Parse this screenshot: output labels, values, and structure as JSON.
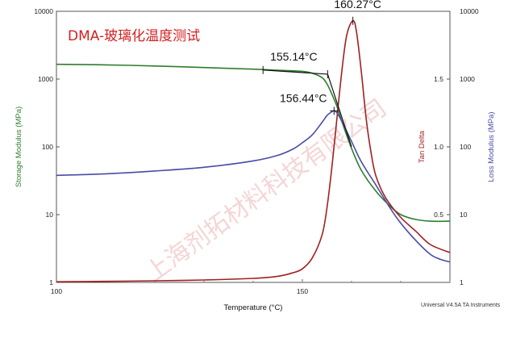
{
  "chart_data": {
    "type": "line",
    "title": "DMA-玻璃化温度测试",
    "xlabel": "Temperature (°C)",
    "xlim": [
      100,
      180
    ],
    "x_ticks": [
      {
        "value": 100,
        "label": "100"
      },
      {
        "value": 150,
        "label": "150"
      }
    ],
    "y_left": {
      "label": "Storage Modulus (MPa)",
      "scale": "log",
      "lim": [
        1,
        10000
      ],
      "tick_labels": [
        "1",
        "10",
        "100",
        "1000",
        "10000"
      ],
      "color": "#2e7d2e"
    },
    "y_right_inner": {
      "label": "Tan Delta",
      "lim": [
        0.0,
        2.0
      ],
      "tick_labels": [
        "0.5",
        "1.0",
        "1.5"
      ],
      "color": "#a02020"
    },
    "y_right_outer": {
      "label": "Loss Modulus (MPa)",
      "scale": "log",
      "lim": [
        1,
        10000
      ],
      "tick_labels": [
        "1",
        "10",
        "100",
        "1000",
        "10000"
      ],
      "color": "#4a4aa8"
    },
    "series": [
      {
        "axis": "y_left",
        "color": "#2e7d2e",
        "x": [
          100,
          110,
          120,
          130,
          140,
          145,
          150,
          152,
          154,
          155,
          156,
          157,
          158,
          160,
          162,
          165,
          168,
          170,
          173,
          176,
          180
        ],
        "y": [
          1650,
          1620,
          1560,
          1480,
          1400,
          1350,
          1300,
          1220,
          1050,
          850,
          600,
          400,
          240,
          95,
          45,
          22,
          13,
          10,
          8.5,
          8,
          8
        ]
      },
      {
        "axis": "y_right_inner",
        "color": "#a02020",
        "x": [
          100,
          110,
          120,
          130,
          140,
          145,
          148,
          150,
          152,
          154,
          155,
          156,
          157,
          158,
          159,
          160.27,
          161,
          162,
          163,
          164,
          165,
          167,
          170,
          173,
          176,
          180
        ],
        "y": [
          0.005,
          0.008,
          0.012,
          0.018,
          0.03,
          0.045,
          0.07,
          0.1,
          0.18,
          0.35,
          0.55,
          0.85,
          1.2,
          1.55,
          1.82,
          1.93,
          1.85,
          1.55,
          1.2,
          0.95,
          0.78,
          0.62,
          0.48,
          0.38,
          0.28,
          0.22
        ]
      },
      {
        "axis": "y_right_outer",
        "color": "#4a4aa8",
        "x": [
          100,
          110,
          120,
          130,
          140,
          145,
          148,
          150,
          152,
          154,
          155,
          156,
          156.44,
          157,
          158,
          160,
          162,
          165,
          168,
          170,
          173,
          176,
          178,
          180
        ],
        "y": [
          38,
          40,
          44,
          50,
          62,
          75,
          92,
          115,
          150,
          230,
          290,
          330,
          340,
          320,
          240,
          120,
          60,
          27,
          12,
          7.5,
          4.2,
          2.6,
          2.2,
          2.0
        ]
      }
    ],
    "annotations": [
      {
        "text": "155.14°C",
        "x": 155.14
      },
      {
        "text": "160.27°C",
        "x": 160.27
      },
      {
        "text": "156.44°C",
        "x": 156.44
      }
    ],
    "footer": "Universal V4.5A TA Instruments",
    "watermark": "上海剂拓材料科技有限公司"
  }
}
